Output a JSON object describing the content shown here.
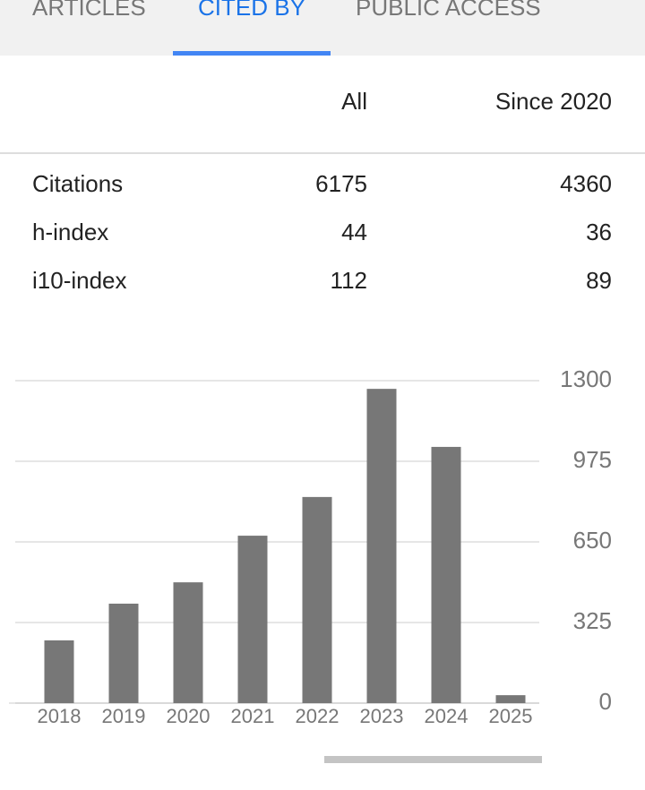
{
  "tabs": [
    "ARTICLES",
    "CITED BY",
    "PUBLIC ACCESS"
  ],
  "table": {
    "header": [
      "All",
      "Since 2020"
    ],
    "rows": [
      [
        "Citations",
        6175,
        4360
      ],
      [
        "h-index",
        44,
        36
      ],
      [
        "i10-index",
        112,
        89
      ]
    ]
  },
  "chart_data": {
    "type": "bar",
    "categories": [
      "2018",
      "2019",
      "2020",
      "2021",
      "2022",
      "2023",
      "2024",
      "2025"
    ],
    "values": [
      253,
      401,
      487,
      675,
      831,
      1267,
      1033,
      32
    ],
    "color": "#777777",
    "ylim": [
      0,
      1300
    ],
    "yticks": [
      0,
      325,
      650,
      975,
      1300
    ],
    "grid": true
  }
}
